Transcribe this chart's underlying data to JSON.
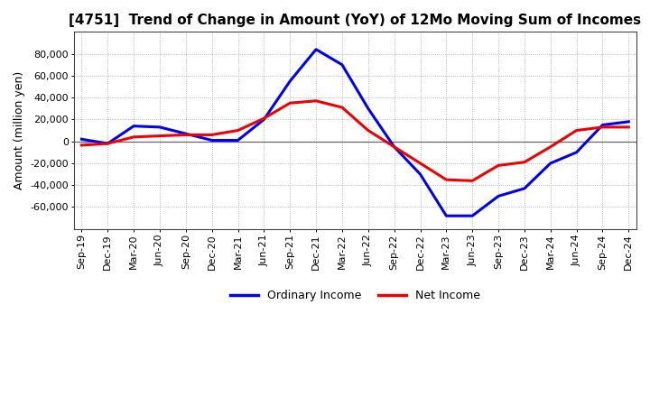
{
  "title": "[4751]  Trend of Change in Amount (YoY) of 12Mo Moving Sum of Incomes",
  "ylabel": "Amount (million yen)",
  "x_labels": [
    "Sep-19",
    "Dec-19",
    "Mar-20",
    "Jun-20",
    "Sep-20",
    "Dec-20",
    "Mar-21",
    "Jun-21",
    "Sep-21",
    "Dec-21",
    "Mar-22",
    "Jun-22",
    "Sep-22",
    "Dec-22",
    "Mar-23",
    "Jun-23",
    "Sep-23",
    "Dec-23",
    "Mar-24",
    "Jun-24",
    "Sep-24",
    "Dec-24"
  ],
  "ordinary_income": [
    2000,
    -2000,
    14000,
    13000,
    7000,
    1000,
    1000,
    20000,
    55000,
    84000,
    70000,
    30000,
    -5000,
    -30000,
    -68000,
    -68000,
    -50000,
    -43000,
    -20000,
    -10000,
    15000,
    18000
  ],
  "net_income": [
    -3500,
    -2000,
    4000,
    5000,
    6000,
    6000,
    10000,
    21000,
    35000,
    37000,
    31000,
    10000,
    -5000,
    -20000,
    -35000,
    -36000,
    -22000,
    -19000,
    -5000,
    10000,
    13000,
    13000
  ],
  "ordinary_income_color": "#0000ee",
  "net_income_color": "#ee0000",
  "ylim": [
    -80000,
    100000
  ],
  "yticks": [
    -60000,
    -40000,
    -20000,
    0,
    20000,
    40000,
    60000,
    80000
  ],
  "legend_labels": [
    "Ordinary Income",
    "Net Income"
  ],
  "background_color": "#ffffff",
  "grid_color": "#999999",
  "line_width": 2.2,
  "title_fontsize": 11,
  "ylabel_fontsize": 9,
  "tick_fontsize": 8
}
